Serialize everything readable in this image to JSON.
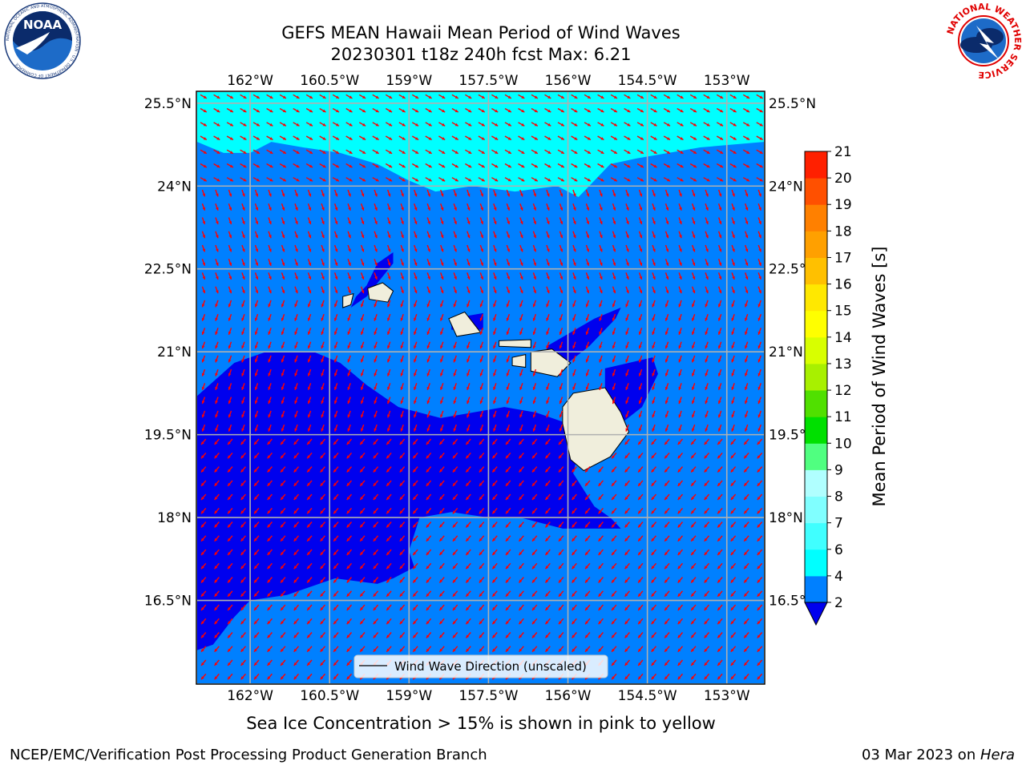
{
  "header": {
    "title": "GEFS MEAN Hawaii Mean Period of Wind Waves",
    "subtitle": "20230301 t18z 240h fcst   Max: 6.21"
  },
  "logos": {
    "left": {
      "name": "NOAA",
      "ring_text": "NATIONAL OCEANIC AND ATMOSPHERIC ADMINISTRATION · U.S. DEPARTMENT OF COMMERCE"
    },
    "right": {
      "ring_text": "NATIONAL WEATHER SERVICE"
    }
  },
  "caption": "Sea Ice Concentration > 15% is shown in pink to yellow",
  "footer": {
    "left": "NCEP/EMC/Verification Post Processing Product Generation Branch",
    "right_prefix": "03 Mar 2023 on ",
    "right_machine": "Hera"
  },
  "chart_data": {
    "type": "heatmap",
    "x_ticks": [
      {
        "lon": -162,
        "label": "162°W"
      },
      {
        "lon": -160.5,
        "label": "160.5°W"
      },
      {
        "lon": -159,
        "label": "159°W"
      },
      {
        "lon": -157.5,
        "label": "157.5°W"
      },
      {
        "lon": -156,
        "label": "156°W"
      },
      {
        "lon": -154.5,
        "label": "154.5°W"
      },
      {
        "lon": -153,
        "label": "153°W"
      }
    ],
    "y_ticks": [
      {
        "lat": 25.5,
        "label": "25.5°N"
      },
      {
        "lat": 24,
        "label": "24°N"
      },
      {
        "lat": 22.5,
        "label": "22.5°N"
      },
      {
        "lat": 21,
        "label": "21°N"
      },
      {
        "lat": 19.5,
        "label": "19.5°N"
      },
      {
        "lat": 18,
        "label": "18°N"
      },
      {
        "lat": 16.5,
        "label": "16.5°N"
      }
    ],
    "lon_range": [
      -163,
      -152.3
    ],
    "lat_range": [
      15.0,
      25.7
    ],
    "grid": true,
    "legend": {
      "label": "Wind Wave Direction (unscaled)",
      "placement": "bottom-center"
    },
    "colorbar": {
      "label": "Mean Period of Wind Waves [s]",
      "levels": [
        2,
        4,
        6,
        7,
        8,
        9,
        10,
        11,
        12,
        13,
        14,
        15,
        16,
        17,
        18,
        19,
        20,
        21
      ],
      "colors": [
        "#0080ff",
        "#00ffff",
        "#40ffff",
        "#80ffff",
        "#b0ffff",
        "#50ff80",
        "#00e000",
        "#50e000",
        "#a8f000",
        "#d8ff00",
        "#ffff00",
        "#ffe800",
        "#ffc000",
        "#ffa000",
        "#ff8000",
        "#ff5000",
        "#ff2000"
      ],
      "under_color": "#0000ee",
      "tick_labels": [
        "2",
        "4",
        "6",
        "7",
        "8",
        "9",
        "10",
        "11",
        "12",
        "13",
        "14",
        "15",
        "16",
        "17",
        "18",
        "19",
        "20",
        "21"
      ]
    },
    "field_colors": {
      "lt2": "#0000ee",
      "2to4": "#0080ff",
      "4to6": "#00ffff",
      "land": "#f0eedc",
      "arrow": "#ff0000",
      "grid": "#b0b0b0"
    },
    "regions": [
      {
        "name": "period-4-6-north",
        "band": "4to6",
        "polygon": [
          [
            -163,
            25.7
          ],
          [
            -152.3,
            25.7
          ],
          [
            -152.3,
            24.8
          ],
          [
            -153.5,
            24.7
          ],
          [
            -154.7,
            24.5
          ],
          [
            -155.2,
            24.4
          ],
          [
            -155.6,
            24.0
          ],
          [
            -155.8,
            23.8
          ],
          [
            -156.2,
            24.0
          ],
          [
            -157,
            23.9
          ],
          [
            -157.8,
            24.0
          ],
          [
            -158.5,
            23.9
          ],
          [
            -159,
            24.1
          ],
          [
            -159.6,
            24.4
          ],
          [
            -160.3,
            24.6
          ],
          [
            -161,
            24.7
          ],
          [
            -161.6,
            24.8
          ],
          [
            -162,
            24.6
          ],
          [
            -162.5,
            24.6
          ],
          [
            -163,
            24.8
          ]
        ]
      },
      {
        "name": "period-lt2-kauai",
        "band": "lt2",
        "polygon": [
          [
            -159.8,
            22.2
          ],
          [
            -159.8,
            22.2
          ],
          [
            -159.6,
            22.6
          ],
          [
            -159.3,
            22.8
          ],
          [
            -159.3,
            22.6
          ],
          [
            -159.8,
            22.0
          ],
          [
            -160.1,
            21.8
          ],
          [
            -160.0,
            22.0
          ]
        ]
      },
      {
        "name": "period-lt2-oahu",
        "band": "lt2",
        "polygon": [
          [
            -158.2,
            21.6
          ],
          [
            -157.6,
            21.7
          ],
          [
            -157.6,
            21.4
          ],
          [
            -158.2,
            21.4
          ]
        ]
      },
      {
        "name": "period-lt2-molokai",
        "band": "lt2",
        "polygon": [
          [
            -156.4,
            21.1
          ],
          [
            -155.5,
            21.6
          ],
          [
            -155.0,
            21.8
          ],
          [
            -155.1,
            21.6
          ],
          [
            -155.6,
            21.1
          ],
          [
            -156.0,
            20.8
          ],
          [
            -156.4,
            20.9
          ]
        ]
      },
      {
        "name": "period-lt2-east",
        "band": "lt2",
        "polygon": [
          [
            -155.3,
            20.7
          ],
          [
            -154.4,
            20.9
          ],
          [
            -154.3,
            20.6
          ],
          [
            -154.6,
            20.0
          ],
          [
            -155.0,
            19.7
          ],
          [
            -155.3,
            19.9
          ]
        ]
      },
      {
        "name": "period-lt2-southwest",
        "band": "lt2",
        "polygon": [
          [
            -163,
            20.2
          ],
          [
            -162.3,
            20.8
          ],
          [
            -161.7,
            21.0
          ],
          [
            -160.8,
            21.0
          ],
          [
            -160.3,
            20.8
          ],
          [
            -159.8,
            20.4
          ],
          [
            -159.2,
            20.0
          ],
          [
            -158.4,
            19.8
          ],
          [
            -157.8,
            19.9
          ],
          [
            -157.2,
            20.0
          ],
          [
            -156.6,
            19.9
          ],
          [
            -156.0,
            19.7
          ],
          [
            -155.6,
            19.7
          ],
          [
            -155.8,
            19.2
          ],
          [
            -155.9,
            18.8
          ],
          [
            -155.7,
            18.5
          ],
          [
            -155.5,
            18.2
          ],
          [
            -155.2,
            18.0
          ],
          [
            -155.0,
            17.8
          ],
          [
            -156.1,
            17.8
          ],
          [
            -156.9,
            18.0
          ],
          [
            -157.5,
            18.0
          ],
          [
            -158.2,
            18.1
          ],
          [
            -158.8,
            18.0
          ],
          [
            -159.0,
            17.4
          ],
          [
            -158.9,
            17.1
          ],
          [
            -159.3,
            16.9
          ],
          [
            -159.6,
            16.8
          ],
          [
            -160.4,
            16.9
          ],
          [
            -161.3,
            16.6
          ],
          [
            -162.0,
            16.5
          ],
          [
            -162.3,
            16.2
          ],
          [
            -162.7,
            15.7
          ],
          [
            -163,
            15.6
          ]
        ]
      },
      {
        "name": "land-kauai",
        "band": "land",
        "polygon": [
          [
            -159.78,
            22.15
          ],
          [
            -159.5,
            22.25
          ],
          [
            -159.3,
            22.1
          ],
          [
            -159.4,
            21.9
          ],
          [
            -159.75,
            21.95
          ]
        ]
      },
      {
        "name": "land-oahu",
        "band": "land",
        "polygon": [
          [
            -158.25,
            21.6
          ],
          [
            -157.95,
            21.72
          ],
          [
            -157.65,
            21.35
          ],
          [
            -158.1,
            21.28
          ]
        ]
      },
      {
        "name": "land-niihau",
        "band": "land",
        "polygon": [
          [
            -160.25,
            22.0
          ],
          [
            -160.05,
            22.05
          ],
          [
            -160.1,
            21.85
          ],
          [
            -160.25,
            21.8
          ]
        ]
      },
      {
        "name": "land-molokai",
        "band": "land",
        "polygon": [
          [
            -157.3,
            21.2
          ],
          [
            -156.7,
            21.22
          ],
          [
            -156.7,
            21.08
          ],
          [
            -157.3,
            21.1
          ]
        ]
      },
      {
        "name": "land-lanai",
        "band": "land",
        "polygon": [
          [
            -157.05,
            20.9
          ],
          [
            -156.8,
            20.95
          ],
          [
            -156.8,
            20.72
          ],
          [
            -157.05,
            20.75
          ]
        ]
      },
      {
        "name": "land-maui",
        "band": "land",
        "polygon": [
          [
            -156.7,
            21.0
          ],
          [
            -156.3,
            21.05
          ],
          [
            -155.95,
            20.8
          ],
          [
            -156.2,
            20.55
          ],
          [
            -156.7,
            20.65
          ]
        ]
      },
      {
        "name": "land-hawaii",
        "band": "land",
        "polygon": [
          [
            -155.9,
            20.25
          ],
          [
            -155.3,
            20.35
          ],
          [
            -155.0,
            19.9
          ],
          [
            -154.85,
            19.55
          ],
          [
            -155.2,
            19.1
          ],
          [
            -155.7,
            18.85
          ],
          [
            -155.95,
            19.05
          ],
          [
            -156.1,
            19.7
          ],
          [
            -156.1,
            20.0
          ]
        ]
      }
    ],
    "wind_direction_bands": [
      {
        "lat_min": 24.0,
        "lat_max": 25.7,
        "direction_deg": 330
      },
      {
        "lat_min": 22.0,
        "lat_max": 24.0,
        "direction_deg": 290
      },
      {
        "lat_min": 19.5,
        "lat_max": 22.0,
        "direction_deg": 250
      },
      {
        "lat_min": 15.0,
        "lat_max": 19.5,
        "direction_deg": 230
      }
    ]
  }
}
